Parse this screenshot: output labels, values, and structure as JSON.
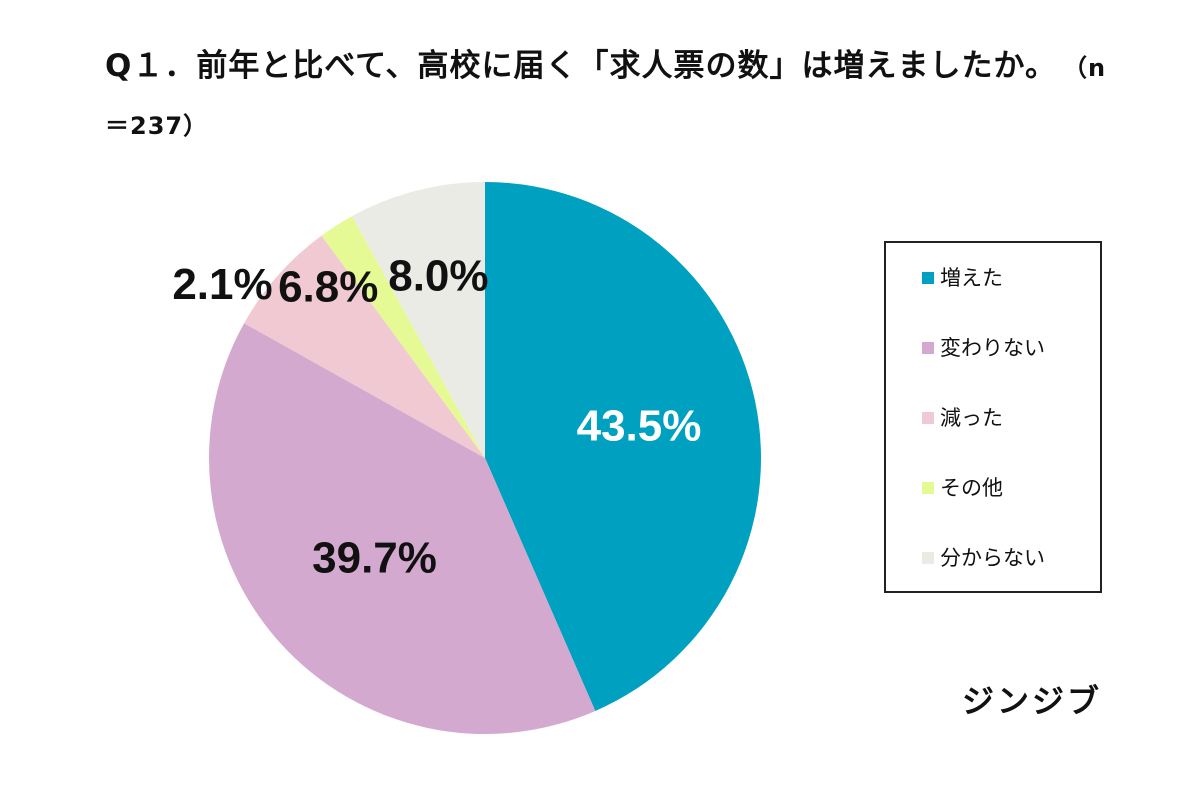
{
  "title": {
    "text": "Q１．前年と比べて、高校に届く「求人票の数」は増えましたか。",
    "n": "（n＝237）"
  },
  "chart_data": {
    "type": "pie",
    "categories": [
      "増えた",
      "変わりない",
      "減った",
      "その他",
      "分からない"
    ],
    "values": [
      43.5,
      39.7,
      6.8,
      2.1,
      8.0
    ],
    "labels": [
      "43.5%",
      "39.7%",
      "6.8%",
      "2.1%",
      "8.0%"
    ],
    "colors": [
      "#00a0c0",
      "#d4a9cf",
      "#f0c9d3",
      "#e5fa94",
      "#ebebe6"
    ],
    "label_colors": [
      "#ffffff",
      "#111111",
      "#111111",
      "#111111",
      "#111111"
    ],
    "start": "12 o'clock, clockwise",
    "legend_position": "right"
  },
  "brand": "ジンジブ"
}
